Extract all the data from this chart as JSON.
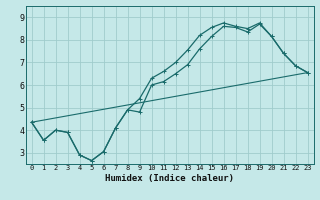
{
  "xlabel": "Humidex (Indice chaleur)",
  "bg_color": "#c5e8e8",
  "grid_color": "#a0cccc",
  "line_color": "#1a6b6b",
  "xlim": [
    -0.5,
    23.5
  ],
  "ylim": [
    2.5,
    9.5
  ],
  "xticks": [
    0,
    1,
    2,
    3,
    4,
    5,
    6,
    7,
    8,
    9,
    10,
    11,
    12,
    13,
    14,
    15,
    16,
    17,
    18,
    19,
    20,
    21,
    22,
    23
  ],
  "yticks": [
    3,
    4,
    5,
    6,
    7,
    8,
    9
  ],
  "line1_x": [
    0,
    1,
    2,
    3,
    4,
    5,
    6,
    7,
    8,
    9,
    10,
    11,
    12,
    13,
    14,
    15,
    16,
    17,
    18,
    19,
    20,
    21,
    22,
    23
  ],
  "line1_y": [
    4.35,
    3.55,
    4.0,
    3.9,
    2.9,
    2.65,
    3.05,
    4.1,
    4.9,
    4.8,
    6.0,
    6.15,
    6.5,
    6.9,
    7.6,
    8.15,
    8.6,
    8.55,
    8.35,
    8.7,
    8.15,
    7.4,
    6.85,
    6.55
  ],
  "line2_x": [
    0,
    1,
    2,
    3,
    4,
    5,
    6,
    7,
    8,
    9,
    10,
    11,
    12,
    13,
    14,
    15,
    16,
    17,
    18,
    19,
    20,
    21,
    22,
    23
  ],
  "line2_y": [
    4.35,
    3.55,
    4.0,
    3.9,
    2.9,
    2.65,
    3.05,
    4.1,
    4.9,
    5.4,
    6.3,
    6.6,
    7.0,
    7.55,
    8.2,
    8.55,
    8.75,
    8.6,
    8.5,
    8.75,
    8.15,
    7.4,
    6.85,
    6.55
  ],
  "line3_x": [
    0,
    23
  ],
  "line3_y": [
    4.35,
    6.55
  ],
  "xtick_fontsize": 5,
  "ytick_fontsize": 6,
  "xlabel_fontsize": 6.5
}
